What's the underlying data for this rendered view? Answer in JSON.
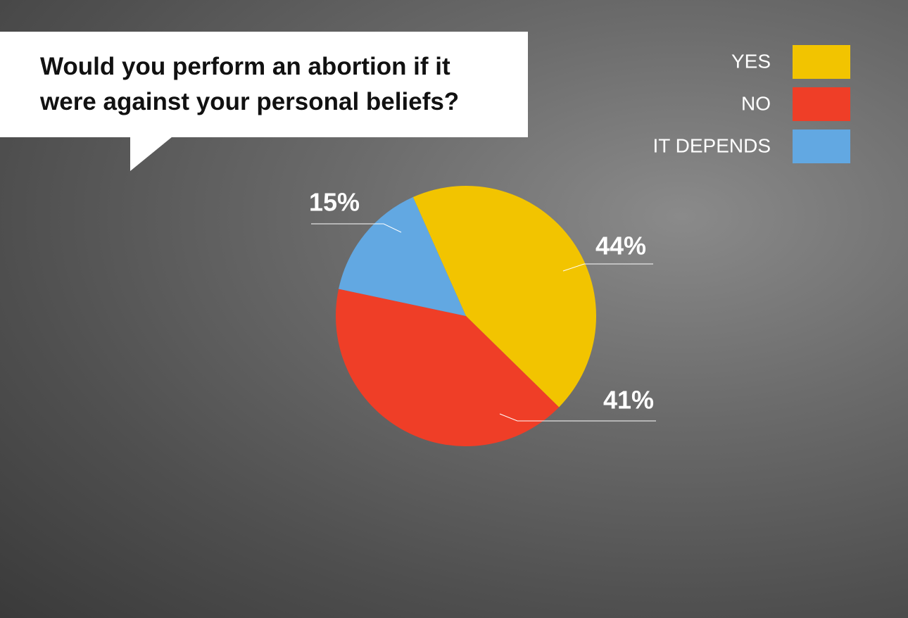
{
  "chart_data": {
    "type": "pie",
    "title": "Would you perform an abortion if it were against your personal beliefs?",
    "categories": [
      "YES",
      "NO",
      "IT DEPENDS"
    ],
    "values": [
      44,
      41,
      15
    ],
    "value_labels": [
      "44%",
      "41%",
      "15%"
    ],
    "colors": [
      "#f2c400",
      "#ef3e27",
      "#62a8e2"
    ]
  }
}
